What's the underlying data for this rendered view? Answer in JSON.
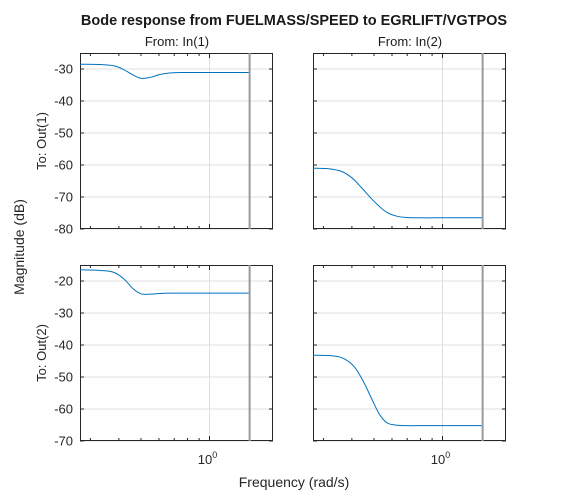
{
  "chart_data": {
    "type": "line",
    "title": "Bode response from FUELMASS/SPEED to EGRLIFT/VGTPOS",
    "xlabel": "Frequency (rad/s)",
    "ylabel": "Magnitude (dB)",
    "x_scale": "log",
    "x_tick_label": "10^0",
    "x_tick_base": "10",
    "x_tick_exp": "0",
    "xlim": [
      0.27,
      1.9
    ],
    "marker_x": 1.5,
    "grid": true,
    "line_color": "#0072bd",
    "marker_color": "#999999",
    "column_titles": [
      "From: In(1)",
      "From: In(2)"
    ],
    "row_labels": [
      "To: Out(1)",
      "To: Out(2)"
    ],
    "rows": [
      {
        "ylim": [
          -80,
          -25
        ],
        "yticks": [
          -30,
          -40,
          -50,
          -60,
          -70,
          -80
        ],
        "panels": [
          {
            "name": "In(1) to Out(1)",
            "x": [
              0.27,
              0.33,
              0.38,
              0.42,
              0.46,
              0.5,
              0.55,
              0.6,
              0.66,
              0.75,
              0.9,
              1.1,
              1.5
            ],
            "y": [
              -28.5,
              -28.6,
              -29.0,
              -30.2,
              -31.8,
              -32.9,
              -32.6,
              -31.8,
              -31.3,
              -31.1,
              -31.1,
              -31.1,
              -31.1
            ]
          },
          {
            "name": "In(2) to Out(1)",
            "x": [
              0.27,
              0.32,
              0.36,
              0.4,
              0.44,
              0.48,
              0.52,
              0.57,
              0.63,
              0.7,
              0.8,
              0.95,
              1.5
            ],
            "y": [
              -61.0,
              -61.2,
              -62.0,
              -64.0,
              -67.0,
              -70.0,
              -72.5,
              -74.8,
              -76.0,
              -76.4,
              -76.5,
              -76.5,
              -76.5
            ]
          }
        ]
      },
      {
        "ylim": [
          -70,
          -15
        ],
        "yticks": [
          -20,
          -30,
          -40,
          -50,
          -60,
          -70
        ],
        "panels": [
          {
            "name": "In(1) to Out(2)",
            "x": [
              0.27,
              0.33,
              0.38,
              0.42,
              0.46,
              0.5,
              0.55,
              0.6,
              0.68,
              0.8,
              1.0,
              1.5
            ],
            "y": [
              -16.5,
              -16.7,
              -17.3,
              -19.3,
              -22.3,
              -24.0,
              -24.1,
              -23.9,
              -23.8,
              -23.8,
              -23.8,
              -23.8
            ]
          },
          {
            "name": "In(2) to Out(2)",
            "x": [
              0.27,
              0.33,
              0.37,
              0.41,
              0.45,
              0.49,
              0.53,
              0.57,
              0.62,
              0.7,
              0.8,
              1.0,
              1.5
            ],
            "y": [
              -43.2,
              -43.4,
              -44.3,
              -46.8,
              -51.5,
              -57.0,
              -61.8,
              -64.3,
              -65.0,
              -65.2,
              -65.2,
              -65.2,
              -65.2
            ]
          }
        ]
      }
    ]
  }
}
